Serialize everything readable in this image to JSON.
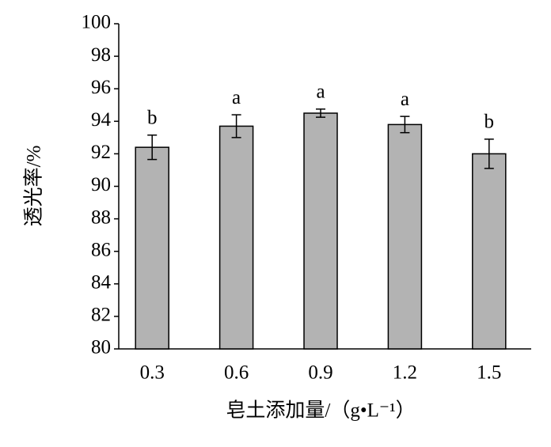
{
  "chart_data": {
    "type": "bar",
    "x_label": "皂土添加量/（g•L⁻¹）",
    "y_label": "透光率/%",
    "categories": [
      "0.3",
      "0.6",
      "0.9",
      "1.2",
      "1.5"
    ],
    "values": [
      92.4,
      93.7,
      94.5,
      93.8,
      92.0
    ],
    "errors": [
      0.75,
      0.7,
      0.25,
      0.5,
      0.9
    ],
    "annotations": [
      "b",
      "a",
      "a",
      "a",
      "b"
    ],
    "color": "#b3b3b3",
    "ylim": [
      80,
      100
    ],
    "yticks": [
      80,
      82,
      84,
      86,
      88,
      90,
      92,
      94,
      96,
      98,
      100
    ],
    "grid": false
  }
}
